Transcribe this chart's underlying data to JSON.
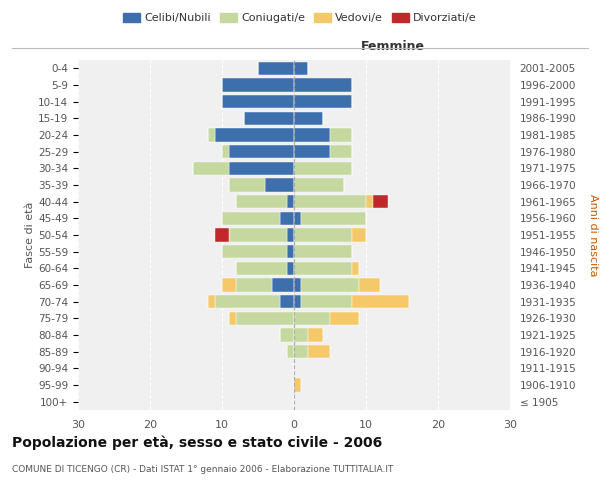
{
  "age_groups": [
    "100+",
    "95-99",
    "90-94",
    "85-89",
    "80-84",
    "75-79",
    "70-74",
    "65-69",
    "60-64",
    "55-59",
    "50-54",
    "45-49",
    "40-44",
    "35-39",
    "30-34",
    "25-29",
    "20-24",
    "15-19",
    "10-14",
    "5-9",
    "0-4"
  ],
  "birth_years": [
    "≤ 1905",
    "1906-1910",
    "1911-1915",
    "1916-1920",
    "1921-1925",
    "1926-1930",
    "1931-1935",
    "1936-1940",
    "1941-1945",
    "1946-1950",
    "1951-1955",
    "1956-1960",
    "1961-1965",
    "1966-1970",
    "1971-1975",
    "1976-1980",
    "1981-1985",
    "1986-1990",
    "1991-1995",
    "1996-2000",
    "2001-2005"
  ],
  "males": {
    "celibi": [
      0,
      0,
      0,
      0,
      0,
      0,
      2,
      3,
      1,
      1,
      1,
      2,
      1,
      4,
      9,
      9,
      11,
      7,
      10,
      10,
      5
    ],
    "coniugati": [
      0,
      0,
      0,
      1,
      2,
      8,
      9,
      5,
      7,
      9,
      8,
      8,
      7,
      5,
      5,
      1,
      1,
      0,
      0,
      0,
      0
    ],
    "vedovi": [
      0,
      0,
      0,
      0,
      0,
      1,
      1,
      2,
      0,
      0,
      0,
      0,
      0,
      0,
      0,
      0,
      0,
      0,
      0,
      0,
      0
    ],
    "divorziati": [
      0,
      0,
      0,
      0,
      0,
      0,
      0,
      0,
      0,
      0,
      2,
      0,
      0,
      0,
      0,
      0,
      0,
      0,
      0,
      0,
      0
    ]
  },
  "females": {
    "nubili": [
      0,
      0,
      0,
      0,
      0,
      0,
      1,
      1,
      0,
      0,
      0,
      1,
      0,
      0,
      0,
      5,
      5,
      4,
      8,
      8,
      2
    ],
    "coniugate": [
      0,
      0,
      0,
      2,
      2,
      5,
      7,
      8,
      8,
      8,
      8,
      9,
      10,
      7,
      8,
      3,
      3,
      0,
      0,
      0,
      0
    ],
    "vedove": [
      0,
      1,
      0,
      3,
      2,
      4,
      8,
      3,
      1,
      0,
      2,
      0,
      1,
      0,
      0,
      0,
      0,
      0,
      0,
      0,
      0
    ],
    "divorziate": [
      0,
      0,
      0,
      0,
      0,
      0,
      0,
      0,
      0,
      0,
      0,
      0,
      2,
      0,
      0,
      0,
      0,
      0,
      0,
      0,
      0
    ]
  },
  "colors": {
    "celibi_nubili": "#3d6fad",
    "coniugati": "#c5d8a0",
    "vedovi": "#f5c96a",
    "divorziati": "#c0282c"
  },
  "xlim": 30,
  "title": "Popolazione per età, sesso e stato civile - 2006",
  "subtitle": "COMUNE DI TICENGO (CR) - Dati ISTAT 1° gennaio 2006 - Elaborazione TUTTITALIA.IT",
  "ylabel_left": "Fasce di età",
  "ylabel_right": "Anni di nascita",
  "legend_labels": [
    "Celibi/Nubili",
    "Coniugati/e",
    "Vedovi/e",
    "Divorziati/e"
  ],
  "femmine_label": "Femmine"
}
